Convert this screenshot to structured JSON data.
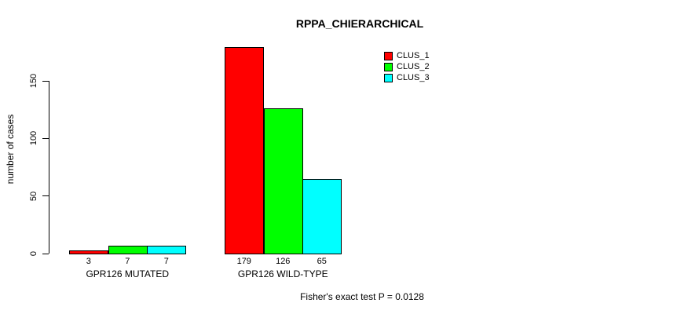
{
  "chart_data": {
    "type": "bar",
    "title": "RPPA_CHIERARCHICAL",
    "ylabel": "number of cases",
    "xlabel": "",
    "categories": [
      "GPR126 MUTATED",
      "GPR126 WILD-TYPE"
    ],
    "series": [
      {
        "name": "CLUS_1",
        "color": "#ff0000",
        "values": [
          3,
          179
        ]
      },
      {
        "name": "CLUS_2",
        "color": "#00ff00",
        "values": [
          7,
          126
        ]
      },
      {
        "name": "CLUS_3",
        "color": "#00ffff",
        "values": [
          7,
          65
        ]
      }
    ],
    "bar_value_labels": [
      [
        "3",
        "7",
        "7"
      ],
      [
        "179",
        "126",
        "65"
      ]
    ],
    "yticks": [
      "0",
      "50",
      "100",
      "150"
    ],
    "ytick_values": [
      0,
      50,
      100,
      150
    ],
    "ylim": [
      0,
      180
    ],
    "grid": false,
    "legend_position": "top-right",
    "annotation": "Fisher's exact test P = 0.0128",
    "axis_color": "#000000",
    "background_color": "#ffffff"
  }
}
